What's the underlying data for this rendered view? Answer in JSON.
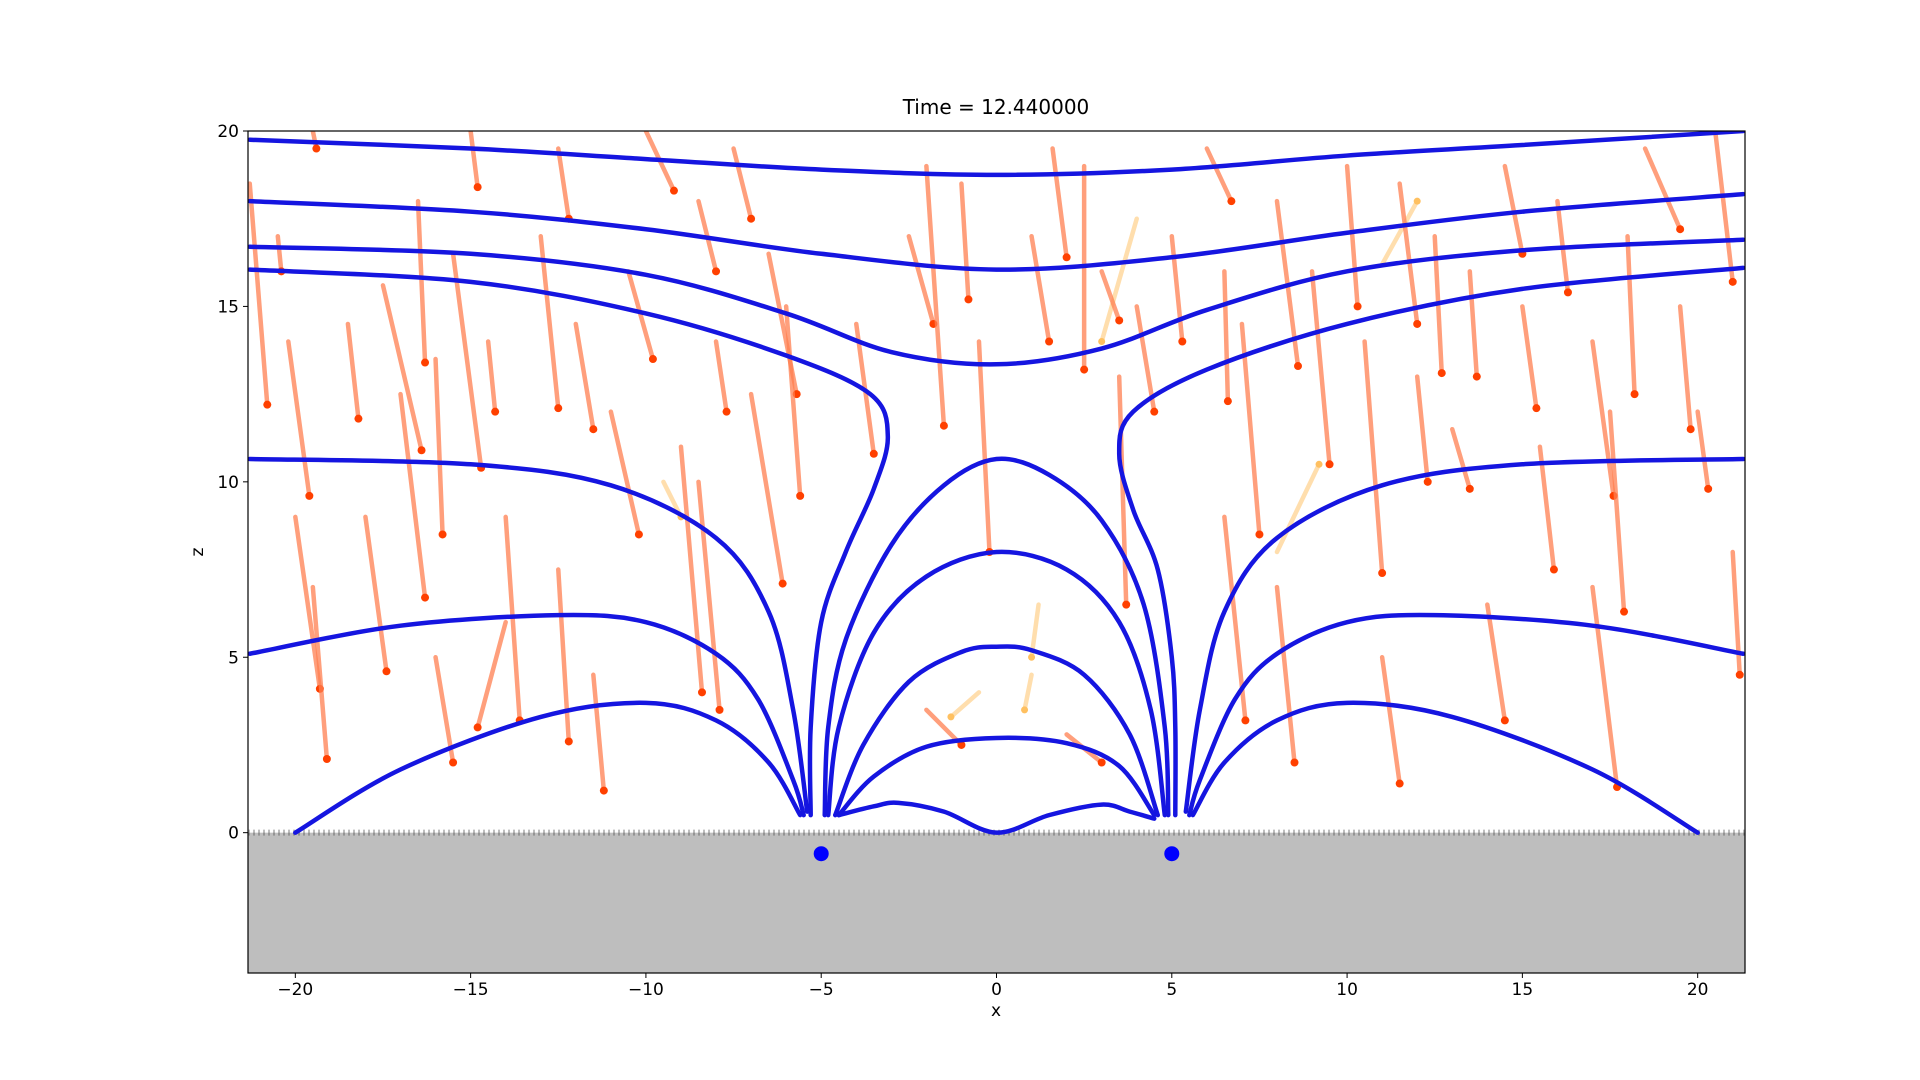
{
  "chart_data": {
    "type": "line",
    "title": "Time = 12.440000",
    "xlabel": "x",
    "ylabel": "z",
    "xlim": [
      -21.35,
      21.35
    ],
    "ylim": [
      -4,
      20
    ],
    "xticks": [
      {
        "value": -20,
        "label": "−20"
      },
      {
        "value": -15,
        "label": "−15"
      },
      {
        "value": -10,
        "label": "−10"
      },
      {
        "value": -5,
        "label": "−5"
      },
      0,
      5,
      10,
      15,
      20
    ],
    "yticks": [
      0,
      5,
      10,
      15,
      20
    ],
    "ground_color": "#bebebe",
    "series": [
      {
        "color": "#1515e0",
        "x": [
          -21.3,
          -15,
          -10,
          -5,
          0,
          5,
          10,
          15,
          21.3
        ],
        "values": [
          19.75,
          19.5,
          19.2,
          18.9,
          18.75,
          18.9,
          19.3,
          19.6,
          20
        ]
      },
      {
        "color": "#1515e0",
        "x": [
          -21.3,
          -15,
          -10,
          -5,
          0,
          5,
          10,
          15,
          21.3
        ],
        "values": [
          18,
          17.7,
          17.2,
          16.5,
          16.05,
          16.4,
          17.1,
          17.7,
          18.2
        ]
      },
      {
        "color": "#1515e0",
        "x": [
          -21.3,
          -15,
          -10,
          -6,
          -3,
          0,
          3,
          6,
          10,
          15,
          21.3
        ],
        "values": [
          16.7,
          16.5,
          15.9,
          14.8,
          13.7,
          13.35,
          13.8,
          14.9,
          16,
          16.6,
          16.9
        ]
      },
      {
        "color": "#1515e0",
        "x": [
          -21.3,
          -15,
          -10,
          -6,
          -3.6,
          -3.1,
          -3.5,
          -4.3,
          -5,
          -5.3,
          -5.3
        ],
        "values": [
          16.05,
          15.7,
          14.8,
          13.6,
          12.5,
          11.3,
          9.8,
          8,
          6,
          3,
          0.5
        ]
      },
      {
        "color": "#1515e0",
        "x": [
          21.3,
          15,
          10,
          6,
          3.9,
          3.5,
          3.9,
          4.6,
          5,
          5.1,
          5.1
        ],
        "values": [
          16.1,
          15.5,
          14.5,
          13.2,
          12,
          10.8,
          9.2,
          7.5,
          5,
          3,
          0.5
        ]
      },
      {
        "color": "#1515e0",
        "x": [
          -21.3,
          -15,
          -11,
          -8,
          -6.5,
          -5.8,
          -5.4
        ],
        "values": [
          10.65,
          10.5,
          9.9,
          8.4,
          6.3,
          3.5,
          0.6
        ]
      },
      {
        "color": "#1515e0",
        "x": [
          21.3,
          15,
          11,
          8,
          6.5,
          5.8,
          5.4
        ],
        "values": [
          10.65,
          10.5,
          9.9,
          8.4,
          6.3,
          3.5,
          0.6
        ]
      },
      {
        "color": "#1515e0",
        "x": [
          -21.3,
          -17,
          -12.5,
          -10,
          -8,
          -6.8,
          -5.8,
          -5.5
        ],
        "values": [
          5.1,
          5.9,
          6.2,
          6,
          5.1,
          3.8,
          1.5,
          0.5
        ]
      },
      {
        "color": "#1515e0",
        "x": [
          21.3,
          17,
          12.5,
          10,
          8,
          6.8,
          5.8,
          5.5
        ],
        "values": [
          5.1,
          5.9,
          6.2,
          6,
          5.1,
          3.8,
          1.5,
          0.5
        ]
      },
      {
        "color": "#1515e0",
        "x": [
          -20,
          -17,
          -13,
          -10,
          -8,
          -6.5,
          -5.6
        ],
        "values": [
          0,
          1.8,
          3.3,
          3.7,
          3.2,
          2,
          0.5
        ]
      },
      {
        "color": "#1515e0",
        "x": [
          20,
          17,
          13,
          10,
          8,
          6.5,
          5.6
        ],
        "values": [
          0,
          1.8,
          3.3,
          3.7,
          3.2,
          2,
          0.5
        ]
      },
      {
        "color": "#1515e0",
        "x": [
          -4.9,
          -4.8,
          -4.3,
          -3,
          -1.5,
          0,
          1.5,
          3,
          4.2,
          4.8,
          4.9
        ],
        "values": [
          0.5,
          3,
          5.5,
          8.2,
          9.9,
          10.65,
          10.2,
          8.9,
          6.5,
          3,
          0.5
        ]
      },
      {
        "color": "#1515e0",
        "x": [
          -4.8,
          -4.5,
          -3.5,
          -2,
          0,
          2,
          3.5,
          4.4,
          4.8
        ],
        "values": [
          0.5,
          3,
          5.7,
          7.3,
          8,
          7.5,
          6,
          3.5,
          0.5
        ]
      },
      {
        "color": "#1515e0",
        "x": [
          -4.6,
          -3.8,
          -2.5,
          -1,
          0,
          1,
          2.5,
          3.8,
          4.6
        ],
        "values": [
          0.5,
          2.5,
          4.3,
          5.15,
          5.3,
          5.2,
          4.5,
          2.8,
          0.5
        ]
      },
      {
        "color": "#1515e0",
        "x": [
          -4.5,
          -3.5,
          -2,
          0,
          2,
          3.5,
          4.5
        ],
        "values": [
          0.5,
          1.6,
          2.45,
          2.7,
          2.55,
          1.9,
          0.5
        ]
      },
      {
        "color": "#1515e0",
        "x": [
          -4.5,
          -3.5,
          -2.8,
          -1.5,
          0,
          1.5,
          3,
          3.8,
          4.5
        ],
        "values": [
          0.5,
          0.75,
          0.85,
          0.6,
          0,
          0.5,
          0.8,
          0.6,
          0.4
        ]
      }
    ],
    "trails": {
      "color": "#ff7f50",
      "dot_color": "#ff4000",
      "items": [
        {
          "x": [
            -21.3,
            -20.8
          ],
          "values": [
            18.5,
            12.2
          ]
        },
        {
          "x": [
            -20.5,
            -20.4
          ],
          "values": [
            17,
            16
          ]
        },
        {
          "x": [
            -20.2,
            -19.6
          ],
          "values": [
            14,
            9.6
          ]
        },
        {
          "x": [
            -20,
            -19.3
          ],
          "values": [
            9,
            4.1
          ]
        },
        {
          "x": [
            -19.5,
            -19.1
          ],
          "values": [
            7,
            2.1
          ]
        },
        {
          "x": [
            -19.5,
            -19.4
          ],
          "values": [
            20,
            19.5
          ]
        },
        {
          "x": [
            -18.5,
            -18.2
          ],
          "values": [
            14.5,
            11.8
          ]
        },
        {
          "x": [
            -18,
            -17.4
          ],
          "values": [
            9,
            4.6
          ]
        },
        {
          "x": [
            -17.5,
            -16.4
          ],
          "values": [
            15.6,
            10.9
          ]
        },
        {
          "x": [
            -17,
            -16.3
          ],
          "values": [
            12.5,
            6.7
          ]
        },
        {
          "x": [
            -16.5,
            -16.3
          ],
          "values": [
            18,
            13.4
          ]
        },
        {
          "x": [
            -16,
            -15.8
          ],
          "values": [
            13.5,
            8.5
          ]
        },
        {
          "x": [
            -15.5,
            -14.7
          ],
          "values": [
            16.5,
            10.4
          ]
        },
        {
          "x": [
            -15,
            -14.8
          ],
          "values": [
            20,
            18.4
          ]
        },
        {
          "x": [
            -14.5,
            -14.3
          ],
          "values": [
            14,
            12
          ]
        },
        {
          "x": [
            -14,
            -13.6
          ],
          "values": [
            9,
            3.2
          ]
        },
        {
          "x": [
            -13,
            -12.5
          ],
          "values": [
            17,
            12.1
          ]
        },
        {
          "x": [
            -12.5,
            -12.2
          ],
          "values": [
            19.5,
            17.5
          ]
        },
        {
          "x": [
            -12,
            -11.5
          ],
          "values": [
            14.5,
            11.5
          ]
        },
        {
          "x": [
            -11,
            -10.2
          ],
          "values": [
            12,
            8.5
          ]
        },
        {
          "x": [
            -10.5,
            -9.8
          ],
          "values": [
            16,
            13.5
          ]
        },
        {
          "x": [
            -10,
            -9.2
          ],
          "values": [
            20,
            18.3
          ]
        },
        {
          "x": [
            -9,
            -8.4
          ],
          "values": [
            11,
            4
          ]
        },
        {
          "x": [
            -8.5,
            -8
          ],
          "values": [
            18,
            16
          ]
        },
        {
          "x": [
            -8,
            -7.7
          ],
          "values": [
            14,
            12
          ]
        },
        {
          "x": [
            -7.5,
            -7
          ],
          "values": [
            19.5,
            17.5
          ]
        },
        {
          "x": [
            -7,
            -6.1
          ],
          "values": [
            12.5,
            7.1
          ]
        },
        {
          "x": [
            -6.5,
            -5.7
          ],
          "values": [
            16.5,
            12.5
          ]
        },
        {
          "x": [
            -6,
            -5.6
          ],
          "values": [
            15,
            9.6
          ]
        },
        {
          "x": [
            -4,
            -3.5
          ],
          "values": [
            14.5,
            10.8
          ]
        },
        {
          "x": [
            -2.5,
            -1.8
          ],
          "values": [
            17,
            14.5
          ]
        },
        {
          "x": [
            -2,
            -1.5
          ],
          "values": [
            19,
            11.6
          ]
        },
        {
          "x": [
            -1,
            -0.8
          ],
          "values": [
            18.5,
            15.2
          ]
        },
        {
          "x": [
            -0.5,
            -0.2
          ],
          "values": [
            14,
            8
          ]
        },
        {
          "x": [
            1,
            1.5
          ],
          "values": [
            17,
            14
          ]
        },
        {
          "x": [
            1.6,
            2
          ],
          "values": [
            19.5,
            16.4
          ]
        },
        {
          "x": [
            2.5,
            2.5
          ],
          "values": [
            19,
            13.2
          ]
        },
        {
          "x": [
            3,
            3.5
          ],
          "values": [
            16,
            14.6
          ]
        },
        {
          "x": [
            3.5,
            3.7
          ],
          "values": [
            13,
            6.5
          ]
        },
        {
          "x": [
            4,
            4.5
          ],
          "values": [
            15,
            12
          ]
        },
        {
          "x": [
            5,
            5.3
          ],
          "values": [
            17,
            14
          ]
        },
        {
          "x": [
            6,
            6.7
          ],
          "values": [
            19.5,
            18
          ]
        },
        {
          "x": [
            6.5,
            6.6
          ],
          "values": [
            16,
            12.3
          ]
        },
        {
          "x": [
            7,
            7.5
          ],
          "values": [
            14.5,
            8.5
          ]
        },
        {
          "x": [
            8,
            8.6
          ],
          "values": [
            18,
            13.3
          ]
        },
        {
          "x": [
            9,
            9.5
          ],
          "values": [
            16,
            10.5
          ]
        },
        {
          "x": [
            10,
            10.3
          ],
          "values": [
            19,
            15
          ]
        },
        {
          "x": [
            10.5,
            11
          ],
          "values": [
            14,
            7.4
          ]
        },
        {
          "x": [
            11.5,
            12
          ],
          "values": [
            18.5,
            14.5
          ]
        },
        {
          "x": [
            12,
            12.3
          ],
          "values": [
            13,
            10
          ]
        },
        {
          "x": [
            12.5,
            12.7
          ],
          "values": [
            17,
            13.1
          ]
        },
        {
          "x": [
            13,
            13.5
          ],
          "values": [
            11.5,
            9.8
          ]
        },
        {
          "x": [
            13.5,
            13.7
          ],
          "values": [
            16,
            13
          ]
        },
        {
          "x": [
            14.5,
            15
          ],
          "values": [
            19,
            16.5
          ]
        },
        {
          "x": [
            15,
            15.4
          ],
          "values": [
            15,
            12.1
          ]
        },
        {
          "x": [
            15.5,
            15.9
          ],
          "values": [
            11,
            7.5
          ]
        },
        {
          "x": [
            16,
            16.3
          ],
          "values": [
            18,
            15.4
          ]
        },
        {
          "x": [
            17,
            17.6
          ],
          "values": [
            14,
            9.6
          ]
        },
        {
          "x": [
            17.5,
            17.9
          ],
          "values": [
            12,
            6.3
          ]
        },
        {
          "x": [
            18,
            18.2
          ],
          "values": [
            17,
            12.5
          ]
        },
        {
          "x": [
            18.5,
            19.5
          ],
          "values": [
            19.5,
            17.2
          ]
        },
        {
          "x": [
            19.5,
            19.8
          ],
          "values": [
            15,
            11.5
          ]
        },
        {
          "x": [
            20,
            20.3
          ],
          "values": [
            12,
            9.8
          ]
        },
        {
          "x": [
            20.5,
            21
          ],
          "values": [
            20,
            15.7
          ]
        },
        {
          "x": [
            21,
            21.2
          ],
          "values": [
            8,
            4.5
          ]
        },
        {
          "x": [
            -12.5,
            -12.2
          ],
          "values": [
            7.5,
            2.6
          ]
        },
        {
          "x": [
            -8.5,
            -7.9
          ],
          "values": [
            10,
            3.5
          ]
        },
        {
          "x": [
            -16,
            -15.5
          ],
          "values": [
            5,
            2
          ]
        },
        {
          "x": [
            14,
            14.5
          ],
          "values": [
            6.5,
            3.2
          ]
        },
        {
          "x": [
            17,
            17.7
          ],
          "values": [
            7,
            1.3
          ]
        },
        {
          "x": [
            11,
            11.5
          ],
          "values": [
            5,
            1.4
          ]
        },
        {
          "x": [
            -11.5,
            -11.2
          ],
          "values": [
            4.5,
            1.2
          ]
        },
        {
          "x": [
            -14,
            -14.8
          ],
          "values": [
            6,
            3
          ]
        },
        {
          "x": [
            6.5,
            7.1
          ],
          "values": [
            9,
            3.2
          ]
        },
        {
          "x": [
            8,
            8.5
          ],
          "values": [
            7,
            2
          ]
        },
        {
          "x": [
            -2,
            -1
          ],
          "values": [
            3.5,
            2.5
          ]
        },
        {
          "x": [
            2,
            3
          ],
          "values": [
            2.8,
            2
          ]
        }
      ]
    },
    "faint_trails": {
      "color": "#ffd08a",
      "dot_color": "#ffc060",
      "items": [
        {
          "x": [
            -9.5,
            -9
          ],
          "values": [
            10,
            9
          ]
        },
        {
          "x": [
            1.2,
            1
          ],
          "values": [
            6.5,
            5
          ]
        },
        {
          "x": [
            -0.5,
            -1.3
          ],
          "values": [
            4,
            3.3
          ]
        },
        {
          "x": [
            4,
            3
          ],
          "values": [
            17.5,
            14
          ]
        },
        {
          "x": [
            11,
            12
          ],
          "values": [
            16.2,
            18
          ]
        },
        {
          "x": [
            8,
            9.2
          ],
          "values": [
            8,
            10.5
          ]
        },
        {
          "x": [
            1,
            0.8
          ],
          "values": [
            4.5,
            3.5
          ]
        }
      ]
    },
    "sources": {
      "color": "#0000ff",
      "x": [
        -5,
        5
      ],
      "values": [
        -0.6,
        -0.6
      ]
    }
  }
}
